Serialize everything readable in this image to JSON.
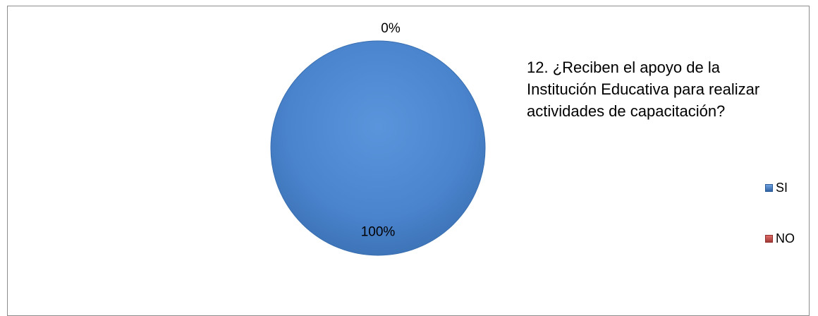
{
  "chart_data": {
    "type": "pie",
    "title": "12. ¿Reciben el apoyo de la Institución Educativa para realizar actividades de capacitación?",
    "categories": [
      "SI",
      "NO"
    ],
    "values": [
      100,
      0
    ],
    "data_labels": [
      "100%",
      "0%"
    ],
    "colors": [
      "#4A86D0",
      "#C0504D"
    ],
    "legend_position": "right"
  }
}
